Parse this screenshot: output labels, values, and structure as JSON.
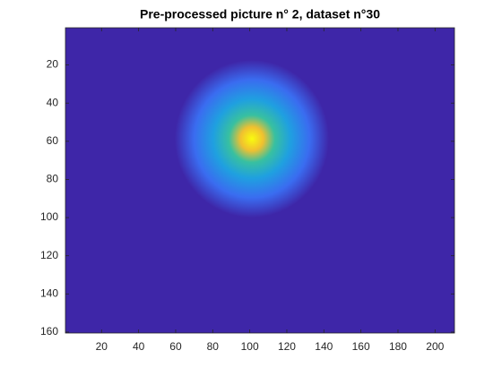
{
  "chart_data": {
    "type": "image",
    "title": "Pre-processed picture n° 2, dataset n°30",
    "xlim": [
      0.5,
      210.5
    ],
    "xticks": [
      20,
      40,
      60,
      80,
      100,
      120,
      140,
      160,
      180,
      200
    ],
    "ylim": [
      0.5,
      160.5
    ],
    "yticks": [
      20,
      40,
      60,
      80,
      100,
      120,
      140,
      160
    ],
    "ydir": "reverse"
  }
}
